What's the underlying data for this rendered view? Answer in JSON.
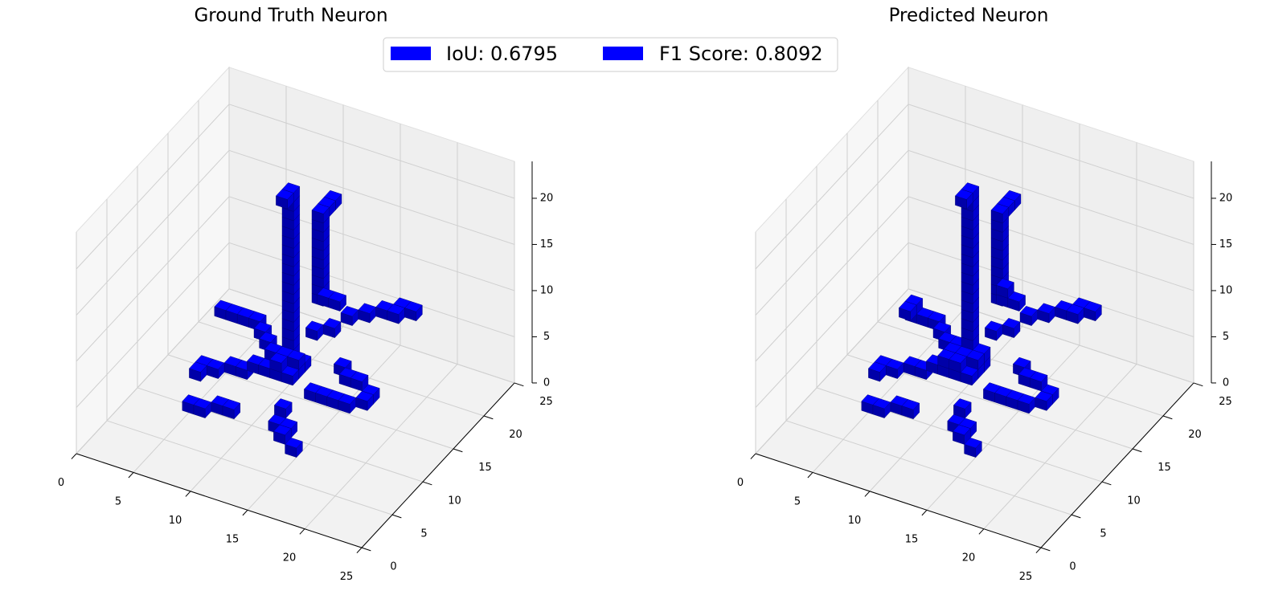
{
  "chart_data": [
    {
      "type": "voxel",
      "title": "Ground Truth Neuron",
      "color": "#0000ff",
      "xlim": [
        0,
        25
      ],
      "ylim": [
        0,
        25
      ],
      "zlim": [
        0,
        24
      ],
      "xticks": [
        0,
        5,
        10,
        15,
        20,
        25
      ],
      "yticks": [
        0,
        5,
        10,
        15,
        20,
        25
      ],
      "zticks": [
        0,
        5,
        10,
        15,
        20
      ],
      "grid": true,
      "voxels": [
        [
          9,
          13,
          3
        ],
        [
          10,
          13,
          3
        ],
        [
          11,
          13,
          3
        ],
        [
          9,
          14,
          3
        ],
        [
          10,
          14,
          3
        ],
        [
          11,
          14,
          3
        ],
        [
          9,
          15,
          3
        ],
        [
          10,
          15,
          3
        ],
        [
          11,
          15,
          3
        ],
        [
          9,
          14,
          4
        ],
        [
          10,
          14,
          4
        ],
        [
          11,
          14,
          4
        ],
        [
          10,
          13,
          4
        ],
        [
          10,
          15,
          4
        ],
        [
          10,
          15,
          5
        ],
        [
          10,
          15,
          6
        ],
        [
          10,
          15,
          7
        ],
        [
          10,
          15,
          8
        ],
        [
          10,
          15,
          9
        ],
        [
          10,
          15,
          10
        ],
        [
          10,
          15,
          11
        ],
        [
          10,
          15,
          12
        ],
        [
          10,
          15,
          13
        ],
        [
          10,
          15,
          14
        ],
        [
          10,
          15,
          15
        ],
        [
          10,
          15,
          16
        ],
        [
          10,
          15,
          17
        ],
        [
          10,
          15,
          18
        ],
        [
          10,
          15,
          19
        ],
        [
          10,
          15,
          20
        ],
        [
          10,
          15,
          21
        ],
        [
          10,
          14,
          21
        ],
        [
          11,
          18,
          8
        ],
        [
          11,
          18,
          9
        ],
        [
          11,
          18,
          10
        ],
        [
          11,
          18,
          11
        ],
        [
          11,
          18,
          12
        ],
        [
          11,
          18,
          13
        ],
        [
          11,
          18,
          14
        ],
        [
          11,
          18,
          15
        ],
        [
          11,
          18,
          16
        ],
        [
          11,
          18,
          17
        ],
        [
          11,
          19,
          17
        ],
        [
          11,
          20,
          17
        ],
        [
          12,
          17,
          9
        ],
        [
          13,
          17,
          9
        ],
        [
          11,
          17,
          5
        ],
        [
          12,
          18,
          5
        ],
        [
          13,
          19,
          6
        ],
        [
          14,
          20,
          6
        ],
        [
          15,
          21,
          6
        ],
        [
          16,
          21,
          6
        ],
        [
          16,
          22,
          6
        ],
        [
          17,
          22,
          6
        ],
        [
          8,
          15,
          4
        ],
        [
          7,
          16,
          4
        ],
        [
          6,
          17,
          4
        ],
        [
          5,
          17,
          4
        ],
        [
          4,
          17,
          4
        ],
        [
          3,
          17,
          4
        ],
        [
          8,
          13,
          3
        ],
        [
          7,
          13,
          2
        ],
        [
          6,
          13,
          2
        ],
        [
          5,
          12,
          2
        ],
        [
          4,
          12,
          2
        ],
        [
          4,
          11,
          2
        ],
        [
          12,
          10,
          2
        ],
        [
          12,
          9,
          1
        ],
        [
          13,
          9,
          1
        ],
        [
          13,
          8,
          1
        ],
        [
          14,
          8,
          0
        ],
        [
          13,
          13,
          2
        ],
        [
          14,
          13,
          2
        ],
        [
          15,
          13,
          2
        ],
        [
          16,
          13,
          2
        ],
        [
          17,
          14,
          2
        ],
        [
          17,
          15,
          2
        ],
        [
          16,
          15,
          3
        ],
        [
          15,
          15,
          3
        ],
        [
          14,
          16,
          3
        ],
        [
          8,
          9,
          1
        ],
        [
          7,
          9,
          1
        ],
        [
          6,
          8,
          1
        ],
        [
          5,
          8,
          1
        ]
      ]
    },
    {
      "type": "voxel",
      "title": "Predicted Neuron",
      "color": "#0000ff",
      "xlim": [
        0,
        25
      ],
      "ylim": [
        0,
        25
      ],
      "zlim": [
        0,
        24
      ],
      "xticks": [
        0,
        5,
        10,
        15,
        20,
        25
      ],
      "yticks": [
        0,
        5,
        10,
        15,
        20,
        25
      ],
      "zticks": [
        0,
        5,
        10,
        15,
        20
      ],
      "grid": true,
      "voxels": [
        [
          9,
          13,
          3
        ],
        [
          10,
          13,
          3
        ],
        [
          11,
          13,
          3
        ],
        [
          9,
          14,
          3
        ],
        [
          10,
          14,
          3
        ],
        [
          11,
          14,
          3
        ],
        [
          9,
          15,
          3
        ],
        [
          10,
          15,
          3
        ],
        [
          11,
          15,
          3
        ],
        [
          9,
          14,
          4
        ],
        [
          10,
          14,
          4
        ],
        [
          11,
          14,
          4
        ],
        [
          10,
          13,
          4
        ],
        [
          10,
          15,
          4
        ],
        [
          9,
          13,
          4
        ],
        [
          11,
          15,
          4
        ],
        [
          9,
          15,
          4
        ],
        [
          10,
          15,
          5
        ],
        [
          10,
          15,
          6
        ],
        [
          10,
          15,
          7
        ],
        [
          10,
          15,
          8
        ],
        [
          10,
          15,
          9
        ],
        [
          10,
          15,
          10
        ],
        [
          10,
          15,
          11
        ],
        [
          10,
          15,
          12
        ],
        [
          10,
          15,
          13
        ],
        [
          10,
          15,
          14
        ],
        [
          10,
          15,
          15
        ],
        [
          10,
          15,
          16
        ],
        [
          10,
          15,
          17
        ],
        [
          10,
          15,
          18
        ],
        [
          10,
          15,
          19
        ],
        [
          10,
          15,
          20
        ],
        [
          10,
          15,
          21
        ],
        [
          10,
          14,
          21
        ],
        [
          11,
          18,
          8
        ],
        [
          11,
          18,
          9
        ],
        [
          11,
          18,
          10
        ],
        [
          11,
          18,
          11
        ],
        [
          11,
          18,
          12
        ],
        [
          11,
          18,
          13
        ],
        [
          11,
          18,
          14
        ],
        [
          11,
          18,
          15
        ],
        [
          11,
          18,
          16
        ],
        [
          11,
          18,
          17
        ],
        [
          11,
          19,
          17
        ],
        [
          11,
          20,
          17
        ],
        [
          12,
          17,
          9
        ],
        [
          13,
          17,
          9
        ],
        [
          12,
          17,
          10
        ],
        [
          11,
          17,
          5
        ],
        [
          12,
          18,
          5
        ],
        [
          13,
          19,
          6
        ],
        [
          14,
          20,
          6
        ],
        [
          15,
          21,
          6
        ],
        [
          16,
          21,
          6
        ],
        [
          16,
          22,
          6
        ],
        [
          17,
          22,
          6
        ],
        [
          8,
          15,
          4
        ],
        [
          7,
          16,
          4
        ],
        [
          6,
          17,
          4
        ],
        [
          5,
          17,
          4
        ],
        [
          4,
          17,
          4
        ],
        [
          4,
          17,
          5
        ],
        [
          4,
          16,
          5
        ],
        [
          8,
          13,
          3
        ],
        [
          7,
          13,
          2
        ],
        [
          6,
          13,
          2
        ],
        [
          5,
          12,
          2
        ],
        [
          4,
          12,
          2
        ],
        [
          4,
          11,
          2
        ],
        [
          12,
          10,
          2
        ],
        [
          12,
          9,
          1
        ],
        [
          13,
          9,
          1
        ],
        [
          13,
          8,
          1
        ],
        [
          14,
          8,
          0
        ],
        [
          13,
          13,
          2
        ],
        [
          14,
          13,
          2
        ],
        [
          15,
          13,
          2
        ],
        [
          16,
          13,
          2
        ],
        [
          17,
          14,
          2
        ],
        [
          17,
          15,
          2
        ],
        [
          16,
          15,
          3
        ],
        [
          15,
          15,
          3
        ],
        [
          14,
          16,
          3
        ],
        [
          8,
          9,
          1
        ],
        [
          7,
          9,
          1
        ],
        [
          6,
          8,
          1
        ],
        [
          5,
          8,
          1
        ]
      ]
    }
  ],
  "legend": [
    {
      "name": "IoU: 0.6795",
      "color": "#0000ff"
    },
    {
      "name": "F1 Score: 0.8092",
      "color": "#0000ff"
    }
  ]
}
